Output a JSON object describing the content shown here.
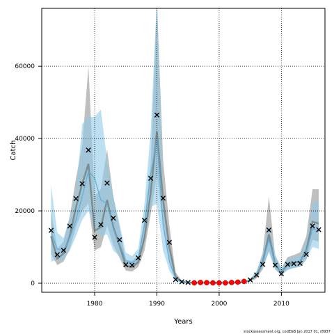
{
  "chart_data": {
    "type": "line",
    "xlabel": "Years",
    "ylabel": "Catch",
    "xlim": [
      1971.5,
      2017
    ],
    "ylim": [
      -2500,
      76000
    ],
    "x_ticks": [
      1980,
      1990,
      2000,
      2010
    ],
    "y_ticks": [
      0,
      20000,
      40000,
      60000
    ],
    "grid": true,
    "footnote": "stockassessment.org, codEGB",
    "footnote_date": "Jan 2017 01, r8937",
    "colors": {
      "gray_band": "#b4b4b4",
      "gray_line": "#7f8c8d",
      "blue_band": "#8fcbe8",
      "blue_line": "#5aaee0",
      "observed_marker": "#000000",
      "predicted_marker": "#ff0000"
    },
    "series": [
      {
        "name": "gray fit",
        "x": [
          1973,
          1974,
          1975,
          1976,
          1977,
          1978,
          1979,
          1980,
          1981,
          1982,
          1983,
          1984,
          1985,
          1986,
          1987,
          1988,
          1989,
          1990,
          1991,
          1992,
          1993,
          1994,
          1995,
          1996,
          1997,
          1998,
          1999,
          2000,
          2001,
          2002,
          2003,
          2004,
          2005,
          2006,
          2007,
          2008,
          2009,
          2010,
          2011,
          2012,
          2013,
          2014,
          2015,
          2016
        ],
        "values": [
          13000,
          6800,
          8200,
          13000,
          21000,
          27500,
          33000,
          14500,
          15500,
          23000,
          15500,
          10500,
          4800,
          4500,
          5800,
          12500,
          25000,
          42000,
          23000,
          10000,
          1800,
          400,
          200,
          150,
          150,
          150,
          150,
          150,
          150,
          150,
          200,
          300,
          800,
          2000,
          5800,
          13500,
          5200,
          3000,
          5200,
          5600,
          6000,
          9000,
          17000,
          16500
        ],
        "lower": [
          8000,
          5000,
          6000,
          9500,
          15500,
          20000,
          22000,
          9000,
          10000,
          16000,
          10500,
          7000,
          3500,
          3200,
          4500,
          9000,
          19000,
          30000,
          16000,
          6000,
          1000,
          200,
          100,
          80,
          80,
          80,
          80,
          80,
          80,
          80,
          100,
          200,
          500,
          1300,
          3800,
          9000,
          3800,
          2200,
          3800,
          4200,
          4500,
          6500,
          12000,
          11500
        ],
        "upper": [
          20000,
          9500,
          11500,
          18500,
          29000,
          38000,
          60000,
          24000,
          26000,
          37000,
          24000,
          15500,
          6500,
          6200,
          7500,
          18000,
          33000,
          78000,
          34000,
          16000,
          3000,
          700,
          350,
          250,
          250,
          250,
          250,
          250,
          250,
          250,
          350,
          500,
          1200,
          3000,
          8500,
          24000,
          7500,
          4200,
          7200,
          7800,
          8500,
          13000,
          26000,
          26000
        ]
      },
      {
        "name": "blue fit",
        "x": [
          1973,
          1974,
          1975,
          1976,
          1977,
          1978,
          1979,
          1980,
          1981,
          1982,
          1983,
          1984,
          1985,
          1986,
          1987,
          1988,
          1989,
          1990,
          1991,
          1992,
          1993,
          1994,
          1995,
          1996,
          1997,
          1998,
          1999,
          2000,
          2001,
          2002,
          2003,
          2004,
          2005,
          2006,
          2007,
          2008,
          2009,
          2010,
          2011,
          2012,
          2013,
          2014,
          2015,
          2016
        ],
        "values": [
          14000,
          9500,
          9000,
          12500,
          17500,
          24000,
          31000,
          29000,
          23000,
          22000,
          15000,
          11000,
          6300,
          5600,
          7000,
          16000,
          30000,
          40000,
          16000,
          6000,
          1200,
          300,
          150,
          100,
          100,
          100,
          100,
          100,
          100,
          100,
          150,
          250,
          900,
          2500,
          6000,
          12000,
          5500,
          3000,
          4800,
          5500,
          6000,
          8500,
          15000,
          14500
        ],
        "lower": [
          6000,
          6500,
          6500,
          9000,
          13000,
          17500,
          20000,
          15000,
          13000,
          13500,
          9000,
          7500,
          4700,
          4300,
          5200,
          12000,
          21000,
          22000,
          9000,
          3500,
          600,
          150,
          80,
          50,
          50,
          50,
          50,
          50,
          50,
          50,
          80,
          150,
          600,
          1700,
          4300,
          8500,
          3800,
          2200,
          3600,
          4200,
          4600,
          6500,
          10000,
          9500
        ],
        "upper": [
          27000,
          14000,
          12500,
          18000,
          25000,
          44000,
          46000,
          46000,
          48000,
          34000,
          24000,
          16500,
          8500,
          7500,
          9500,
          22000,
          42000,
          79000,
          26000,
          10500,
          2000,
          500,
          250,
          200,
          200,
          200,
          200,
          200,
          200,
          200,
          300,
          500,
          1300,
          3400,
          8000,
          16500,
          8000,
          4200,
          6600,
          7200,
          7800,
          11500,
          22000,
          23000
        ]
      }
    ],
    "observed": {
      "x": [
        1973,
        1974,
        1975,
        1976,
        1977,
        1978,
        1979,
        1980,
        1981,
        1982,
        1983,
        1984,
        1985,
        1986,
        1987,
        1988,
        1989,
        1990,
        1991,
        1992,
        1993,
        1994,
        1995,
        2005,
        2006,
        2007,
        2008,
        2009,
        2010,
        2011,
        2012,
        2013,
        2014,
        2015,
        2016
      ],
      "values": [
        14600,
        7900,
        9100,
        15800,
        23400,
        27500,
        36800,
        12700,
        16200,
        27700,
        18000,
        12000,
        5100,
        5000,
        7000,
        17400,
        29000,
        46500,
        23500,
        11300,
        1000,
        400,
        200,
        900,
        2300,
        5200,
        14700,
        5000,
        2600,
        5200,
        5400,
        5500,
        8000,
        15800,
        14800
      ]
    },
    "predicted": {
      "x": [
        1996,
        1997,
        1998,
        1999,
        2000,
        2001,
        2002,
        2003,
        2004
      ],
      "values": [
        100,
        200,
        150,
        100,
        80,
        80,
        200,
        300,
        500
      ]
    }
  }
}
